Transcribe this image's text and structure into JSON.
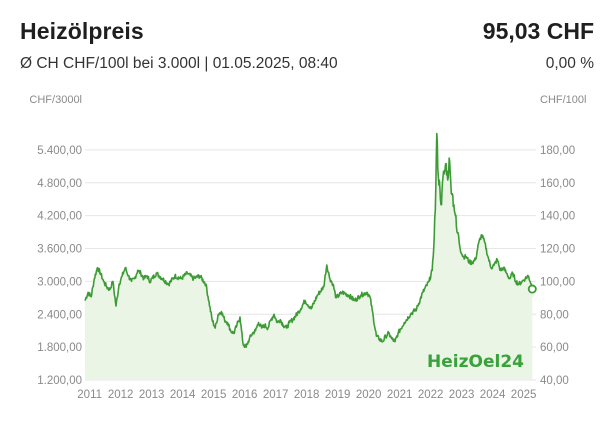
{
  "header": {
    "title": "Heizölpreis",
    "price": "95,03 CHF",
    "subtitle": "Ø CH CHF/100l bei 3.000l | 01.05.2025, 08:40",
    "change": "0,00 %"
  },
  "brand": {
    "logo_text": "HeizOel24",
    "color": "#3aa23a"
  },
  "colors": {
    "line": "#3d9b35",
    "fill": "#eaf5e6",
    "grid": "#e6e6e6",
    "marker": "#3d9b35"
  },
  "chart_data": {
    "type": "area",
    "left_axis": {
      "unit": "CHF/3000l",
      "range": [
        1200,
        5800
      ],
      "ticks": [
        "1.200,00",
        "1.800,00",
        "2.400,00",
        "3.000,00",
        "3.600,00",
        "4.200,00",
        "4.800,00",
        "5.400,00"
      ]
    },
    "right_axis": {
      "unit": "CHF/100l",
      "range": [
        40,
        193.33
      ],
      "ticks": [
        "40,00",
        "60,00",
        "80,00",
        "100,00",
        "120,00",
        "140,00",
        "160,00",
        "180,00"
      ]
    },
    "x_axis": {
      "range": [
        2010.9,
        2025.45
      ],
      "ticks": [
        "2011",
        "2012",
        "2013",
        "2014",
        "2015",
        "2016",
        "2017",
        "2018",
        "2019",
        "2020",
        "2021",
        "2022",
        "2023",
        "2024",
        "2025"
      ]
    },
    "grid": true,
    "series": [
      {
        "name": "",
        "x": [
          2010.9,
          2011.0,
          2011.1,
          2011.2,
          2011.3,
          2011.4,
          2011.5,
          2011.6,
          2011.7,
          2011.8,
          2011.9,
          2012.0,
          2012.1,
          2012.2,
          2012.3,
          2012.4,
          2012.5,
          2012.6,
          2012.7,
          2012.8,
          2012.9,
          2013.0,
          2013.2,
          2013.4,
          2013.6,
          2013.8,
          2014.0,
          2014.2,
          2014.4,
          2014.6,
          2014.8,
          2015.0,
          2015.1,
          2015.2,
          2015.3,
          2015.4,
          2015.5,
          2015.6,
          2015.7,
          2015.8,
          2015.9,
          2016.0,
          2016.1,
          2016.2,
          2016.3,
          2016.4,
          2016.5,
          2016.6,
          2016.7,
          2016.8,
          2016.9,
          2017.0,
          2017.1,
          2017.2,
          2017.3,
          2017.4,
          2017.5,
          2017.6,
          2017.8,
          2018.0,
          2018.2,
          2018.4,
          2018.6,
          2018.7,
          2018.8,
          2018.9,
          2019.0,
          2019.2,
          2019.4,
          2019.6,
          2019.8,
          2020.0,
          2020.1,
          2020.2,
          2020.3,
          2020.4,
          2020.5,
          2020.6,
          2020.7,
          2020.8,
          2020.9,
          2021.0,
          2021.2,
          2021.4,
          2021.6,
          2021.8,
          2022.0,
          2022.1,
          2022.15,
          2022.2,
          2022.25,
          2022.3,
          2022.35,
          2022.4,
          2022.45,
          2022.5,
          2022.55,
          2022.6,
          2022.65,
          2022.7,
          2022.75,
          2022.8,
          2022.85,
          2022.9,
          2022.95,
          2023.0,
          2023.1,
          2023.2,
          2023.3,
          2023.4,
          2023.5,
          2023.6,
          2023.7,
          2023.8,
          2023.9,
          2024.0,
          2024.1,
          2024.2,
          2024.3,
          2024.4,
          2024.5,
          2024.6,
          2024.7,
          2024.8,
          2024.9,
          2025.0,
          2025.1,
          2025.2,
          2025.3,
          2025.33
        ],
        "values": [
          2650,
          2800,
          2720,
          3050,
          3250,
          3150,
          3000,
          2900,
          2850,
          3000,
          2550,
          2950,
          3100,
          3250,
          3100,
          3000,
          3050,
          3200,
          3150,
          3050,
          3100,
          3000,
          3150,
          3050,
          2950,
          3100,
          3050,
          3150,
          3050,
          3100,
          2950,
          2300,
          2150,
          2400,
          2450,
          2300,
          2250,
          2100,
          2050,
          2200,
          2350,
          1850,
          1800,
          1950,
          2050,
          2100,
          2250,
          2150,
          2200,
          2150,
          2300,
          2400,
          2250,
          2300,
          2200,
          2150,
          2250,
          2300,
          2450,
          2650,
          2500,
          2750,
          2900,
          3300,
          3050,
          2950,
          2700,
          2800,
          2750,
          2650,
          2750,
          2800,
          2700,
          2350,
          2000,
          1950,
          1900,
          2000,
          2050,
          1950,
          1900,
          2050,
          2250,
          2400,
          2500,
          2800,
          3000,
          3200,
          3600,
          4300,
          5700,
          4900,
          4700,
          4400,
          4900,
          5000,
          5150,
          4850,
          5250,
          4800,
          4600,
          4400,
          4200,
          3900,
          3850,
          3600,
          3450,
          3450,
          3350,
          3350,
          3400,
          3700,
          3850,
          3700,
          3450,
          3250,
          3300,
          3400,
          3200,
          3250,
          3150,
          3050,
          3150,
          3000,
          2950,
          3000,
          3050,
          3100,
          2950,
          2860
        ]
      }
    ],
    "last_point": {
      "x": 2025.33,
      "value": 2860
    }
  }
}
